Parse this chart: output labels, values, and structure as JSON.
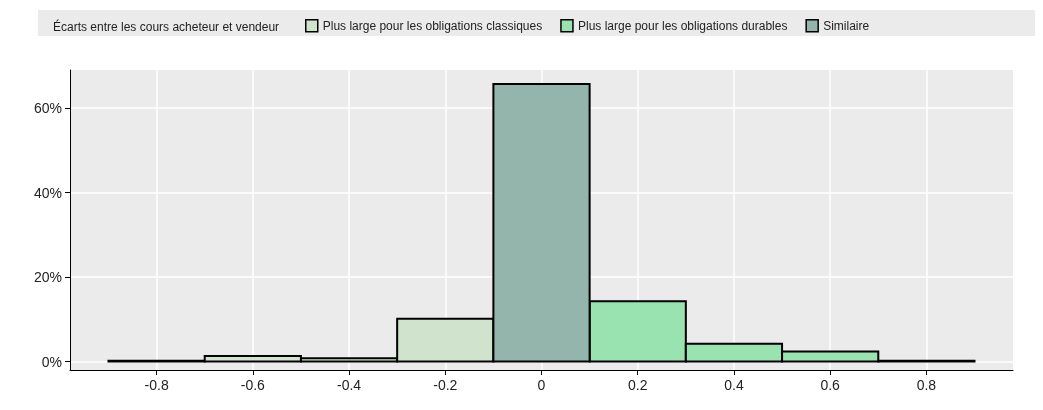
{
  "chart_data": {
    "type": "histogram",
    "legend_title": "Écarts entre les cours acheteur et vendeur",
    "legend": "top",
    "bins": [
      -0.9,
      -0.7,
      -0.5,
      -0.3,
      -0.1,
      0.1,
      0.3,
      0.5,
      0.7,
      0.9
    ],
    "series": [
      {
        "name": "Plus large pour les obligations classiques",
        "color": "#d0e3cc",
        "values": [
          0.2,
          1.3,
          0.8,
          10.1,
          null,
          null,
          null,
          null,
          null
        ]
      },
      {
        "name": "Plus large pour les obligations durables",
        "color": "#98e3b0",
        "values": [
          null,
          null,
          null,
          null,
          null,
          14.3,
          4.2,
          2.4,
          0.2
        ]
      },
      {
        "name": "Similaire",
        "color": "#93b5ac",
        "values": [
          null,
          null,
          null,
          null,
          65.7,
          null,
          null,
          null,
          null
        ]
      }
    ],
    "xlim": [
      -0.98,
      0.98
    ],
    "xticks": [
      -0.8,
      -0.6,
      -0.4,
      -0.2,
      0,
      0.2,
      0.4,
      0.6,
      0.8
    ],
    "ylim": [
      -2,
      69
    ],
    "yticks": [
      {
        "value": 0,
        "label": "0%"
      },
      {
        "value": 20,
        "label": "20%"
      },
      {
        "value": 40,
        "label": "40%"
      },
      {
        "value": 60,
        "label": "60%"
      }
    ],
    "grid": true
  }
}
